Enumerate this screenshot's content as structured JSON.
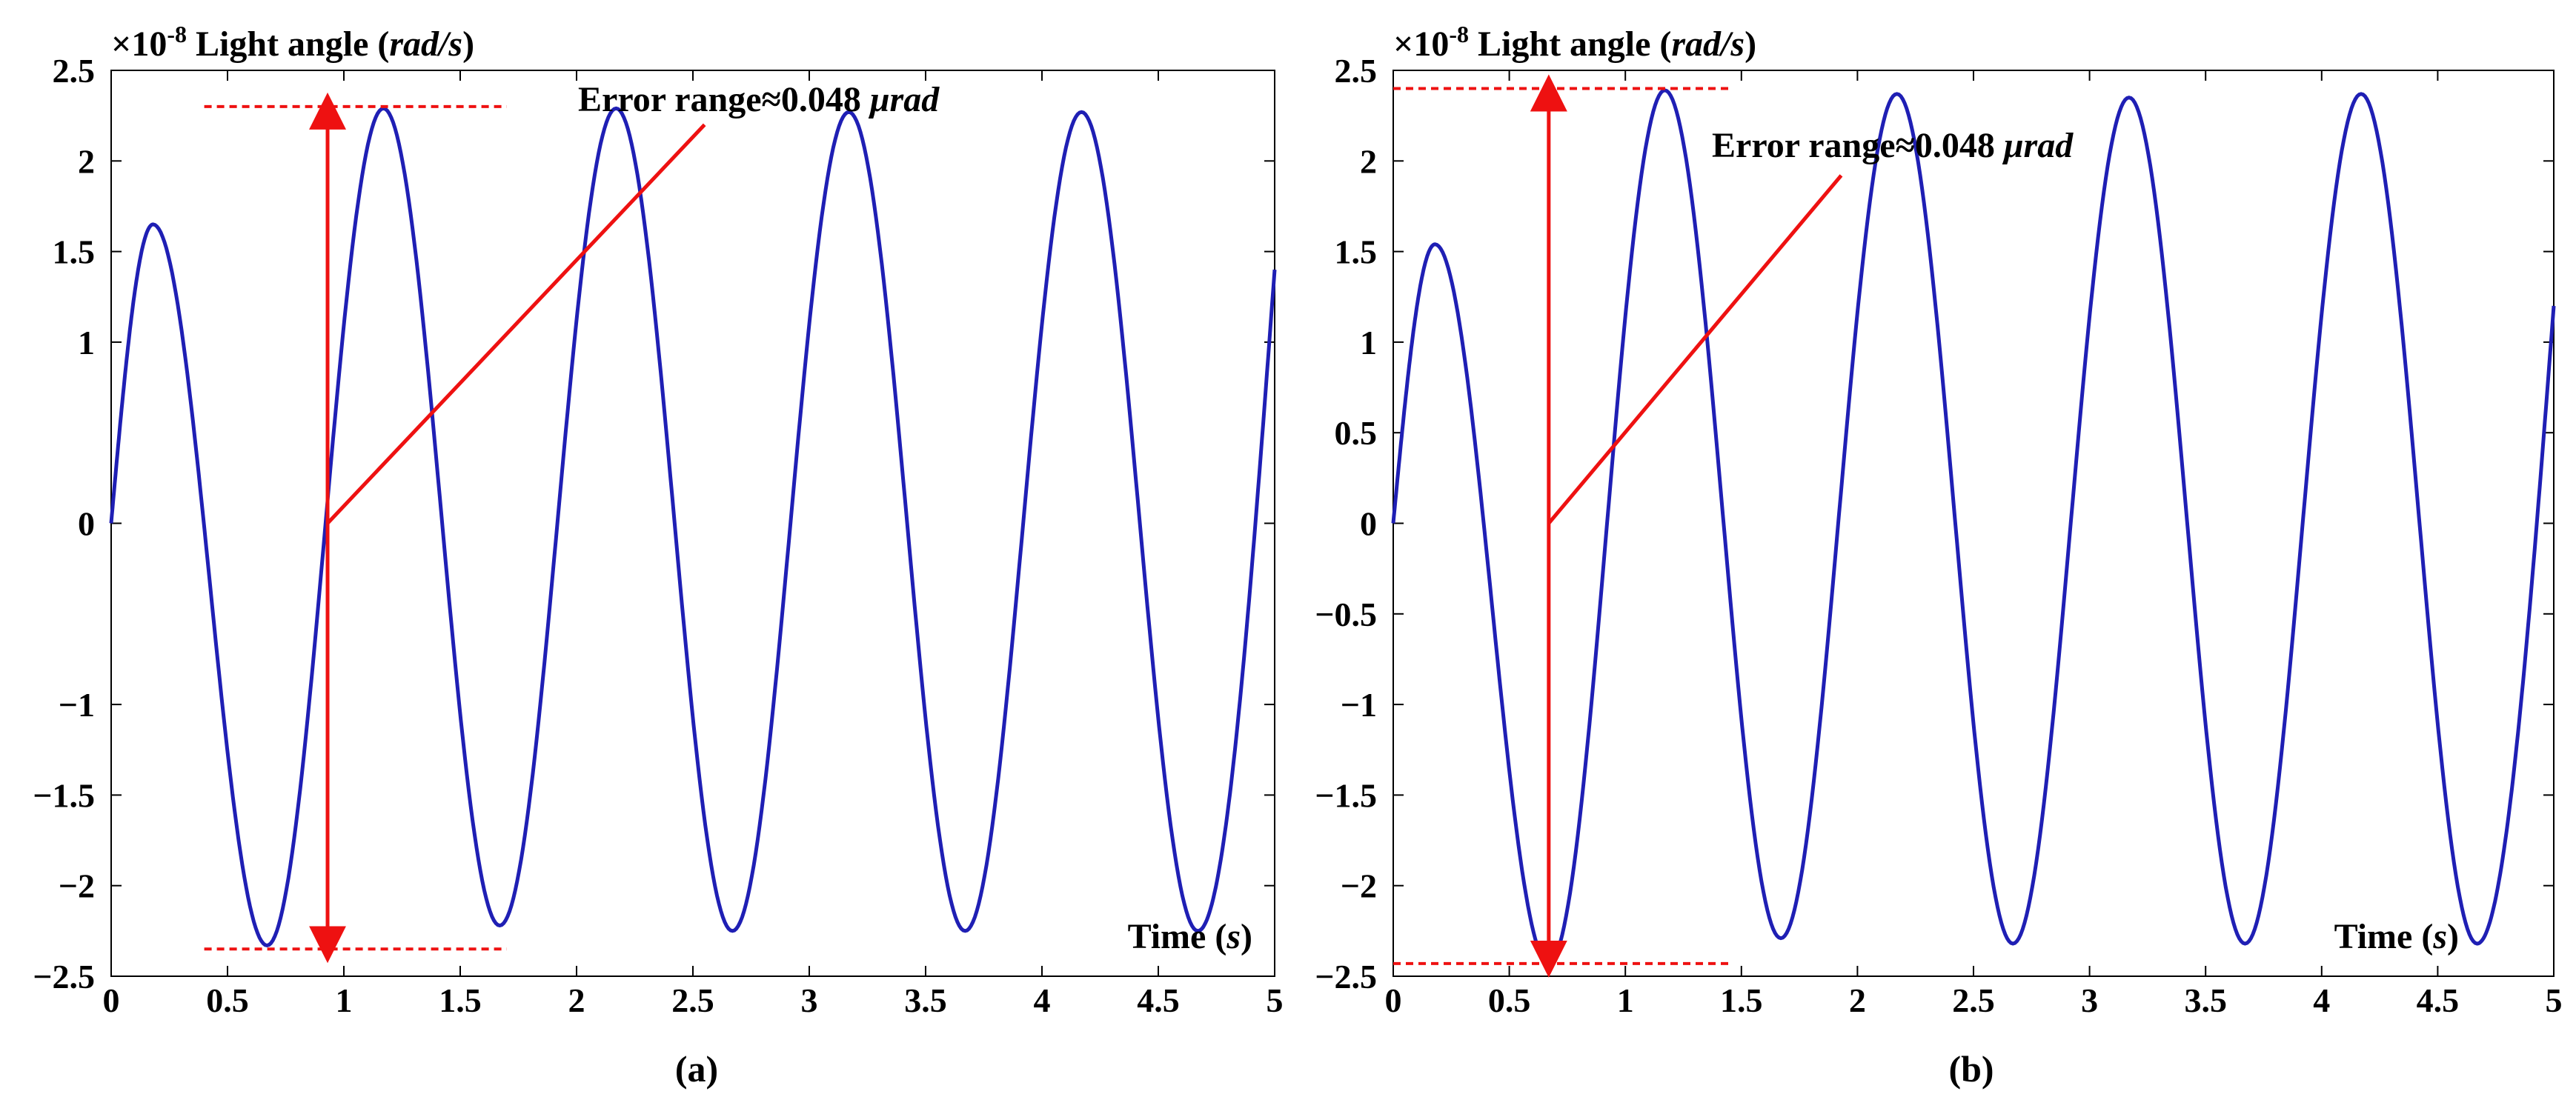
{
  "colors": {
    "signal": "#1f1fb4",
    "annotation": "#ee1111",
    "axis": "#000000"
  },
  "chart_data": [
    {
      "type": "line",
      "panel_label": "(a)",
      "ylabel_prefix": "×10",
      "ylabel_exp": "-8",
      "ylabel_text": " Light angle (",
      "ylabel_unit": "rad/s",
      "ylabel_close": ")",
      "xlabel_text": "Time (",
      "xlabel_unit": "s",
      "xlabel_close": ")",
      "xlim": [
        0,
        5
      ],
      "ylim": [
        -2.5,
        2.5
      ],
      "x_ticks": [
        0,
        0.5,
        1,
        1.5,
        2,
        2.5,
        3,
        3.5,
        4,
        4.5,
        5
      ],
      "x_tick_labels": [
        "0",
        "0.5",
        "1",
        "1.5",
        "2",
        "2.5",
        "3",
        "3.5",
        "4",
        "4.5",
        "5"
      ],
      "y_ticks": [
        2.5,
        2,
        1.5,
        1,
        0,
        -1,
        -1.5,
        -2,
        -2.5
      ],
      "y_tick_labels": [
        "2.5",
        "2",
        "1.5",
        "1",
        "0",
        "−1",
        "−1.5",
        "−2",
        "−2.5"
      ],
      "series": [
        {
          "x": [
            0,
            0.18,
            0.67,
            1.17,
            1.67,
            2.17,
            2.67,
            3.17,
            3.67,
            4.17,
            4.67,
            5.0
          ],
          "y": [
            0,
            1.65,
            -2.33,
            2.29,
            -2.22,
            2.29,
            -2.25,
            2.27,
            -2.25,
            2.27,
            -2.25,
            1.4
          ]
        }
      ],
      "annotation": {
        "text": "Error range≈0.048 ",
        "unit": "μrad",
        "level_high": 2.3,
        "level_low": -2.35,
        "dash_x": [
          0.4,
          1.7
        ],
        "arrow_x": 0.93,
        "pointer_from": [
          0.93,
          0
        ],
        "pointer_to": [
          2.55,
          2.2
        ]
      }
    },
    {
      "type": "line",
      "panel_label": "(b)",
      "ylabel_prefix": "×10",
      "ylabel_exp": "-8",
      "ylabel_text": " Light angle (",
      "ylabel_unit": "rad/s",
      "ylabel_close": ")",
      "xlabel_text": "Time (",
      "xlabel_unit": "s",
      "xlabel_close": ")",
      "xlim": [
        0,
        5
      ],
      "ylim": [
        -2.5,
        2.5
      ],
      "x_ticks": [
        0,
        0.5,
        1,
        1.5,
        2,
        2.5,
        3,
        3.5,
        4,
        4.5,
        5
      ],
      "x_tick_labels": [
        "0",
        "0.5",
        "1",
        "1.5",
        "2",
        "2.5",
        "3",
        "3.5",
        "4",
        "4.5",
        "5"
      ],
      "y_ticks": [
        2.5,
        2,
        1.5,
        1,
        0.5,
        0,
        -0.5,
        -1,
        -1.5,
        -2,
        -2.5
      ],
      "y_tick_labels": [
        "2.5",
        "2",
        "1.5",
        "1",
        "0.5",
        "0",
        "−0.5",
        "−1",
        "−1.5",
        "−2",
        "−2.5"
      ],
      "series": [
        {
          "x": [
            0,
            0.18,
            0.67,
            1.17,
            1.67,
            2.17,
            2.67,
            3.17,
            3.67,
            4.17,
            4.67,
            5.0
          ],
          "y": [
            0,
            1.54,
            -2.43,
            2.39,
            -2.29,
            2.37,
            -2.32,
            2.35,
            -2.32,
            2.37,
            -2.32,
            1.2
          ]
        }
      ],
      "annotation": {
        "text": "Error range≈0.048 ",
        "unit": "μrad",
        "level_high": 2.4,
        "level_low": -2.43,
        "dash_x": [
          0,
          1.45
        ],
        "arrow_x": 0.67,
        "pointer_from": [
          0.67,
          0
        ],
        "pointer_to": [
          1.93,
          1.92
        ]
      }
    }
  ]
}
